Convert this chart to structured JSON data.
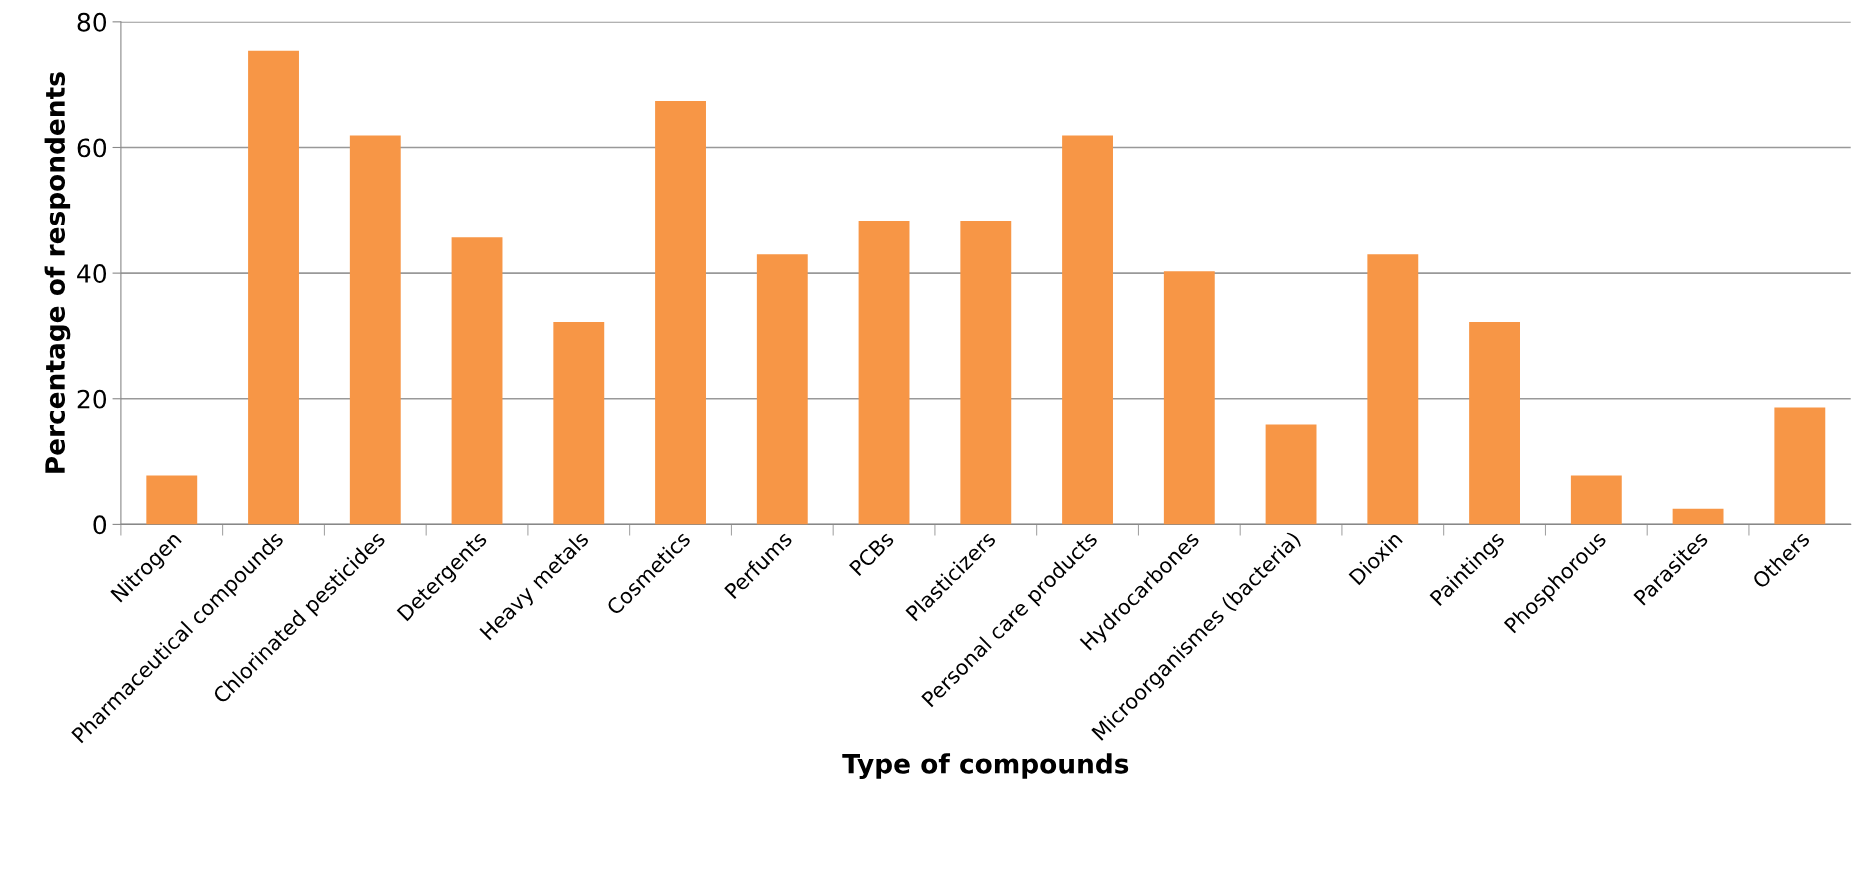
{
  "chart_data": {
    "type": "bar",
    "xlabel": "Type of compounds",
    "ylabel": "Percentage of respondents",
    "categories": [
      "Nitrogen",
      "Pharmaceutical compounds",
      "Chlorinated pesticides",
      "Detergents",
      "Heavy metals",
      "Cosmetics",
      "Perfums",
      "PCBs",
      "Plasticizers",
      "Personal care products",
      "Hydrocarbones",
      "Microorganismes (bacteria)",
      "Dioxin",
      "Paintings",
      "Phosphorous",
      "Parasites",
      "Others"
    ],
    "values": [
      7.8,
      75.4,
      61.9,
      45.7,
      32.2,
      67.4,
      43.0,
      48.3,
      48.3,
      61.9,
      40.3,
      15.9,
      43.0,
      32.2,
      7.8,
      2.5,
      18.6
    ],
    "color": "#f79646",
    "ylim": [
      0,
      80
    ],
    "yticks": [
      0,
      20,
      40,
      60,
      80
    ],
    "grid": "y",
    "legend": false
  }
}
